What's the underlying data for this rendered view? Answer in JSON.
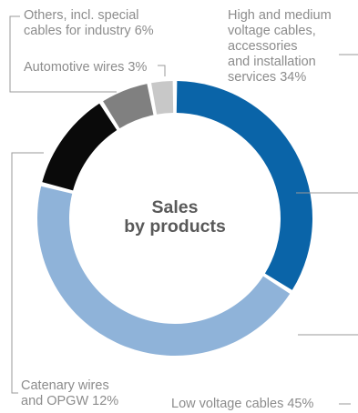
{
  "chart_data": {
    "type": "pie",
    "variant": "donut",
    "title": "Sales\nby products",
    "slices": [
      {
        "label": "High and medium\nvoltage cables,\naccessories\nand installation\nservices 34%",
        "value": 34,
        "color": "#0a64a8"
      },
      {
        "label": "Low voltage cables 45%",
        "value": 45,
        "color": "#8fb3d9"
      },
      {
        "label": "Catenary wires\nand OPGW 12%",
        "value": 12,
        "color": "#0a0a0a"
      },
      {
        "label": "Others, incl. special\ncables for industry 6%",
        "value": 6,
        "color": "#808080"
      },
      {
        "label": "Automotive wires 3%",
        "value": 3,
        "color": "#c8c8c8"
      }
    ]
  }
}
